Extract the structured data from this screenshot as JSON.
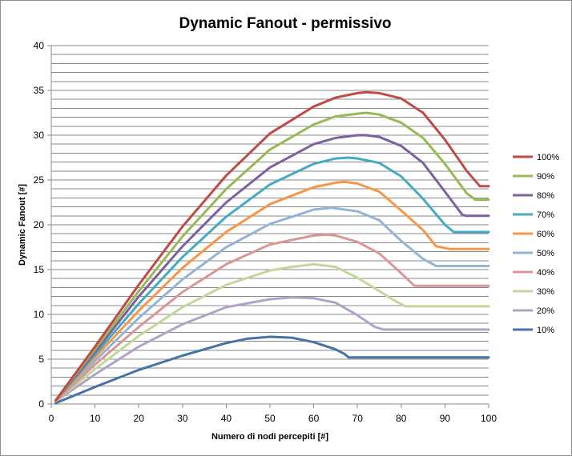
{
  "chart_data": {
    "type": "line",
    "title": "Dynamic Fanout  - permissivo",
    "xlabel": "Numero di nodi percepiti [#]",
    "ylabel": "Dynamic Fanout [#]",
    "xlim": [
      0,
      100
    ],
    "ylim": [
      0,
      40
    ],
    "x_ticks": [
      "0",
      "10",
      "20",
      "30",
      "40",
      "50",
      "60",
      "70",
      "80",
      "90",
      "100"
    ],
    "y_ticks": [
      "0",
      "5",
      "10",
      "15",
      "20",
      "25",
      "30",
      "35",
      "40"
    ],
    "grid": "horizontal",
    "legend_position": "right",
    "series": [
      {
        "name": "100%",
        "color": "#BE4B48",
        "x": [
          1,
          10,
          20,
          30,
          40,
          50,
          60,
          65,
          70,
          72,
          75,
          80,
          85,
          90,
          95,
          98,
          100
        ],
        "values": [
          0.4,
          6.4,
          13.3,
          19.8,
          25.5,
          30.2,
          33.2,
          34.2,
          34.7,
          34.8,
          34.7,
          34.1,
          32.5,
          29.5,
          26.0,
          24.3,
          24.3
        ]
      },
      {
        "name": "90%",
        "color": "#98B954",
        "x": [
          1,
          10,
          20,
          30,
          40,
          50,
          60,
          65,
          70,
          72,
          75,
          80,
          85,
          90,
          95,
          97,
          100
        ],
        "values": [
          0.4,
          6.1,
          12.6,
          18.7,
          24.0,
          28.4,
          31.2,
          32.1,
          32.4,
          32.5,
          32.3,
          31.4,
          29.7,
          26.8,
          23.5,
          22.8,
          22.8
        ]
      },
      {
        "name": "80%",
        "color": "#7D60A0",
        "x": [
          1,
          10,
          20,
          30,
          40,
          50,
          60,
          65,
          70,
          72,
          75,
          80,
          85,
          90,
          94,
          95,
          100
        ],
        "values": [
          0.4,
          5.8,
          12.0,
          17.6,
          22.5,
          26.4,
          29.0,
          29.7,
          30.0,
          30.0,
          29.8,
          28.8,
          26.9,
          23.7,
          21.1,
          21.0,
          21.0
        ]
      },
      {
        "name": "70%",
        "color": "#46AAC5",
        "x": [
          1,
          10,
          20,
          30,
          40,
          50,
          60,
          65,
          68,
          70,
          75,
          80,
          85,
          90,
          92,
          100
        ],
        "values": [
          0.4,
          5.5,
          11.2,
          16.4,
          20.9,
          24.5,
          26.8,
          27.4,
          27.5,
          27.4,
          26.9,
          25.4,
          22.9,
          20.0,
          19.2,
          19.2
        ]
      },
      {
        "name": "60%",
        "color": "#F79646",
        "x": [
          1,
          10,
          20,
          30,
          40,
          50,
          60,
          65,
          67,
          70,
          75,
          80,
          85,
          88,
          91,
          100
        ],
        "values": [
          0.3,
          5.2,
          10.4,
          15.2,
          19.2,
          22.3,
          24.2,
          24.7,
          24.8,
          24.6,
          23.7,
          21.6,
          19.4,
          17.6,
          17.3,
          17.3
        ]
      },
      {
        "name": "50%",
        "color": "#95B3D7",
        "x": [
          1,
          10,
          20,
          30,
          40,
          50,
          60,
          64,
          70,
          75,
          80,
          85,
          88,
          100
        ],
        "values": [
          0.3,
          4.8,
          9.6,
          13.9,
          17.5,
          20.1,
          21.7,
          21.9,
          21.5,
          20.5,
          18.2,
          16.2,
          15.4,
          15.4
        ]
      },
      {
        "name": "40%",
        "color": "#D99694",
        "x": [
          1,
          10,
          20,
          30,
          40,
          50,
          60,
          63,
          65,
          70,
          75,
          80,
          83,
          100
        ],
        "values": [
          0.3,
          4.4,
          8.6,
          12.5,
          15.6,
          17.8,
          18.8,
          18.9,
          18.8,
          18.1,
          16.8,
          14.6,
          13.2,
          13.2
        ]
      },
      {
        "name": "30%",
        "color": "#C3D69B",
        "x": [
          1,
          10,
          20,
          30,
          40,
          50,
          55,
          60,
          65,
          70,
          75,
          79,
          81,
          100
        ],
        "values": [
          0.3,
          3.9,
          7.6,
          10.8,
          13.3,
          14.9,
          15.3,
          15.6,
          15.3,
          14.1,
          12.6,
          11.4,
          10.9,
          10.9
        ]
      },
      {
        "name": "20%",
        "color": "#B3A2C7",
        "x": [
          1,
          10,
          20,
          30,
          40,
          50,
          55,
          60,
          65,
          70,
          74,
          76,
          100
        ],
        "values": [
          0.3,
          3.3,
          6.4,
          8.9,
          10.8,
          11.7,
          11.9,
          11.8,
          11.3,
          9.9,
          8.6,
          8.3,
          8.3
        ]
      },
      {
        "name": "10%",
        "color": "#4573A7",
        "x": [
          1,
          10,
          20,
          30,
          40,
          45,
          50,
          55,
          60,
          65,
          67,
          68,
          100
        ],
        "values": [
          0.1,
          1.9,
          3.8,
          5.4,
          6.8,
          7.3,
          7.5,
          7.4,
          6.9,
          6.1,
          5.6,
          5.2,
          5.2
        ]
      }
    ]
  }
}
